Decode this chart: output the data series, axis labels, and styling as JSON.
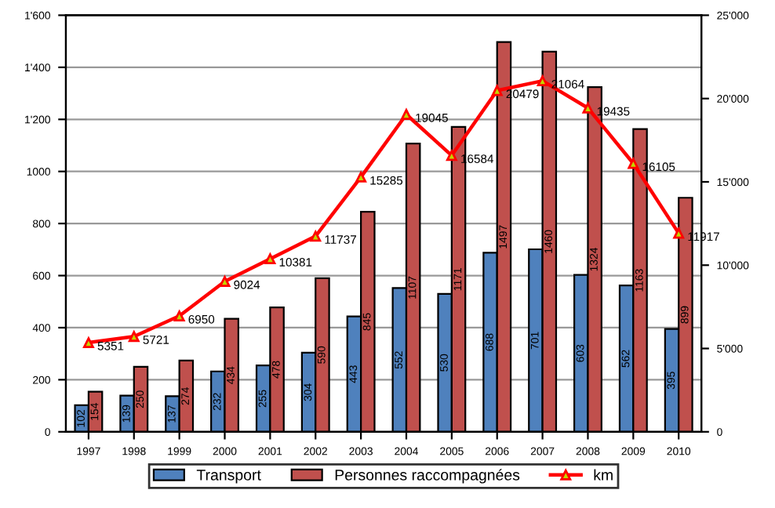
{
  "chart_data": {
    "type": "bar",
    "categories": [
      "1997",
      "1998",
      "1999",
      "2000",
      "2001",
      "2002",
      "2003",
      "2004",
      "2005",
      "2006",
      "2007",
      "2008",
      "2009",
      "2010"
    ],
    "series": [
      {
        "name": "Transport",
        "color": "#4f81bd",
        "values": [
          102,
          139,
          137,
          232,
          255,
          304,
          443,
          552,
          530,
          688,
          701,
          603,
          562,
          395
        ]
      },
      {
        "name": "Personnes raccompagnées",
        "color": "#c0504d",
        "values": [
          154,
          250,
          274,
          434,
          478,
          590,
          845,
          1107,
          1171,
          1497,
          1460,
          1324,
          1163,
          899
        ]
      },
      {
        "name": "km",
        "type": "line",
        "axis": "y2",
        "color": "#ff0000",
        "marker": "triangle",
        "values": [
          5351,
          5721,
          6950,
          9024,
          10381,
          11737,
          15285,
          19045,
          16584,
          20479,
          21064,
          19435,
          16105,
          11917
        ]
      }
    ],
    "ylim": [
      0,
      1600
    ],
    "yticks": [
      0,
      200,
      400,
      600,
      800,
      1000,
      {
        "value": 1200,
        "label": "1'200"
      },
      {
        "value": 1400,
        "label": "1'400"
      },
      {
        "value": 1600,
        "label": "1'600"
      }
    ],
    "y2lim": [
      0,
      25000
    ],
    "y2ticks": [
      0,
      {
        "value": 5000,
        "label": "5'000"
      },
      {
        "value": 10000,
        "label": "10'000"
      },
      {
        "value": 15000,
        "label": "15'000"
      },
      {
        "value": 20000,
        "label": "20'000"
      },
      {
        "value": 25000,
        "label": "25'000"
      }
    ],
    "grid": "y",
    "legend": "bottom",
    "data_labels": true
  }
}
